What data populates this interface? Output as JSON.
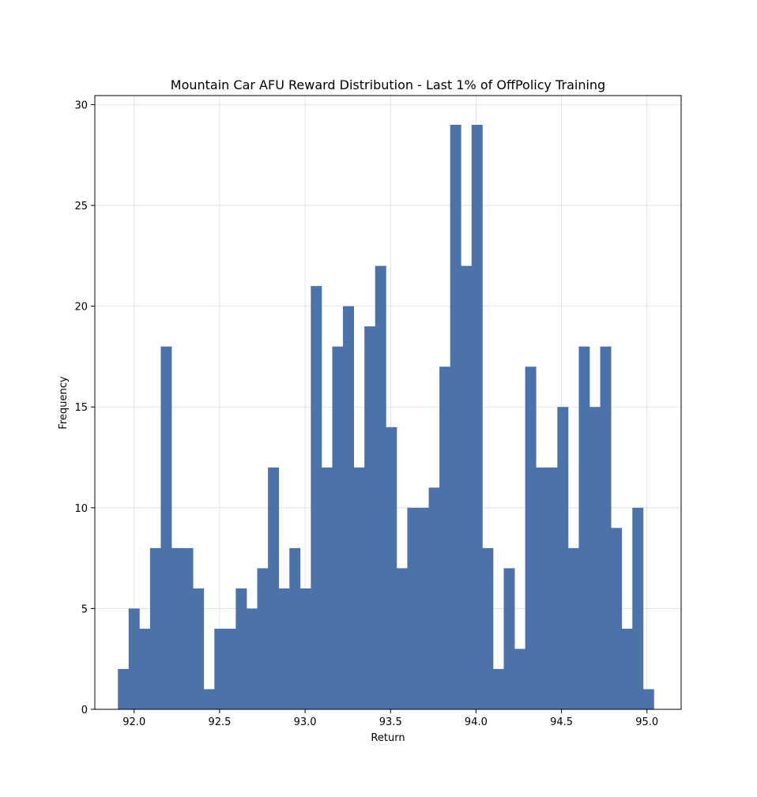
{
  "chart_data": {
    "type": "bar",
    "subtype": "histogram",
    "title": "Mountain Car AFU Reward Distribution - Last 1% of OffPolicy Training",
    "xlabel": "Return",
    "ylabel": "Frequency",
    "xlim": [
      91.77,
      95.2
    ],
    "ylim": [
      0,
      30.45
    ],
    "xticks": [
      92.0,
      92.5,
      93.0,
      93.5,
      94.0,
      94.5,
      95.0
    ],
    "xtick_labels": [
      "92.0",
      "92.5",
      "93.0",
      "93.5",
      "94.0",
      "94.5",
      "95.0"
    ],
    "yticks": [
      0,
      5,
      10,
      15,
      20,
      25,
      30
    ],
    "ytick_labels": [
      "0",
      "5",
      "10",
      "15",
      "20",
      "25",
      "30"
    ],
    "grid": true,
    "bar_color": "#4c72aa",
    "bin_start": 91.905,
    "bin_width": 0.0627,
    "values": [
      2,
      5,
      4,
      8,
      18,
      8,
      8,
      6,
      1,
      4,
      4,
      6,
      5,
      7,
      12,
      6,
      8,
      6,
      21,
      12,
      18,
      20,
      12,
      19,
      22,
      14,
      7,
      10,
      10,
      11,
      17,
      29,
      22,
      29,
      8,
      2,
      7,
      3,
      17,
      12,
      12,
      15,
      8,
      18,
      15,
      18,
      9,
      4,
      10,
      1
    ]
  }
}
